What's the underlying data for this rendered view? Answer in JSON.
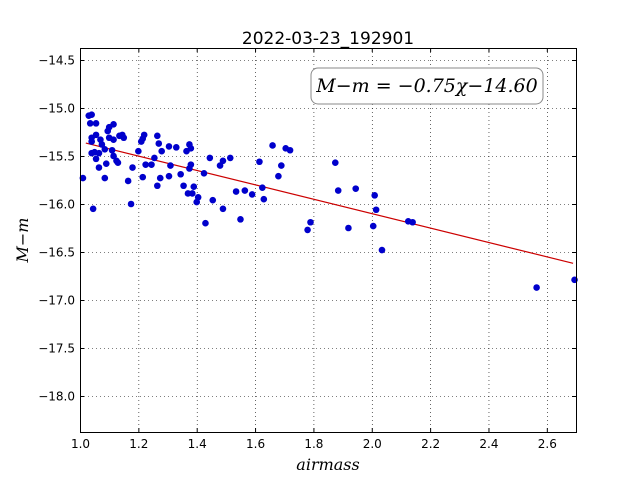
{
  "chart_data": {
    "type": "scatter",
    "title": "2022-03-23_192901",
    "xlabel": "airmass",
    "ylabel": "M−m",
    "xlim": [
      1.0,
      2.7
    ],
    "ylim": [
      -18.375,
      -14.375
    ],
    "y_inverted": true,
    "xticks": [
      1.0,
      1.2,
      1.4,
      1.6,
      1.8,
      2.0,
      2.2,
      2.4,
      2.6
    ],
    "xtick_labels": [
      "1.0",
      "1.2",
      "1.4",
      "1.6",
      "1.8",
      "2.0",
      "2.2",
      "2.4",
      "2.6"
    ],
    "yticks": [
      -14.5,
      -15.0,
      -15.5,
      -16.0,
      -16.5,
      -17.0,
      -17.5,
      -18.0
    ],
    "ytick_labels": [
      "−14.5",
      "−15.0",
      "−15.5",
      "−16.0",
      "−16.5",
      "−17.0",
      "−17.5",
      "−18.0"
    ],
    "grid": true,
    "annotation": "M−m = −0.75χ−14.60",
    "fit": {
      "slope": -0.75,
      "intercept": -14.6,
      "x_range": [
        1.02,
        2.69
      ],
      "color": "#cc0000"
    },
    "point_color": "#0000cc",
    "points": [
      [
        1.01,
        -15.73
      ],
      [
        1.03,
        -15.08
      ],
      [
        1.04,
        -15.07
      ],
      [
        1.035,
        -15.16
      ],
      [
        1.055,
        -15.16
      ],
      [
        1.04,
        -15.31
      ],
      [
        1.055,
        -15.28
      ],
      [
        1.04,
        -15.35
      ],
      [
        1.07,
        -15.33
      ],
      [
        1.075,
        -15.38
      ],
      [
        1.085,
        -15.43
      ],
      [
        1.04,
        -15.47
      ],
      [
        1.05,
        -15.46
      ],
      [
        1.065,
        -15.47
      ],
      [
        1.055,
        -15.53
      ],
      [
        1.065,
        -15.62
      ],
      [
        1.085,
        -15.73
      ],
      [
        1.09,
        -15.58
      ],
      [
        1.045,
        -16.05
      ],
      [
        1.095,
        -15.24
      ],
      [
        1.1,
        -15.2
      ],
      [
        1.1,
        -15.31
      ],
      [
        1.115,
        -15.17
      ],
      [
        1.115,
        -15.33
      ],
      [
        1.135,
        -15.29
      ],
      [
        1.145,
        -15.28
      ],
      [
        1.15,
        -15.31
      ],
      [
        1.11,
        -15.44
      ],
      [
        1.115,
        -15.5
      ],
      [
        1.125,
        -15.55
      ],
      [
        1.13,
        -15.57
      ],
      [
        1.165,
        -15.76
      ],
      [
        1.175,
        -16.0
      ],
      [
        1.18,
        -15.62
      ],
      [
        1.2,
        -15.45
      ],
      [
        1.21,
        -15.35
      ],
      [
        1.215,
        -15.32
      ],
      [
        1.22,
        -15.28
      ],
      [
        1.215,
        -15.72
      ],
      [
        1.225,
        -15.59
      ],
      [
        1.245,
        -15.59
      ],
      [
        1.265,
        -15.29
      ],
      [
        1.27,
        -15.37
      ],
      [
        1.28,
        -15.45
      ],
      [
        1.255,
        -15.52
      ],
      [
        1.265,
        -15.81
      ],
      [
        1.275,
        -15.73
      ],
      [
        1.305,
        -15.4
      ],
      [
        1.305,
        -15.71
      ],
      [
        1.31,
        -15.6
      ],
      [
        1.33,
        -15.41
      ],
      [
        1.345,
        -15.69
      ],
      [
        1.355,
        -15.81
      ],
      [
        1.365,
        -15.45
      ],
      [
        1.375,
        -15.38
      ],
      [
        1.38,
        -15.42
      ],
      [
        1.375,
        -15.63
      ],
      [
        1.38,
        -15.59
      ],
      [
        1.37,
        -15.89
      ],
      [
        1.385,
        -15.89
      ],
      [
        1.39,
        -15.82
      ],
      [
        1.4,
        -15.98
      ],
      [
        1.405,
        -15.93
      ],
      [
        1.425,
        -15.68
      ],
      [
        1.43,
        -16.2
      ],
      [
        1.445,
        -15.52
      ],
      [
        1.455,
        -15.96
      ],
      [
        1.48,
        -15.6
      ],
      [
        1.49,
        -15.55
      ],
      [
        1.49,
        -16.05
      ],
      [
        1.515,
        -15.52
      ],
      [
        1.535,
        -15.87
      ],
      [
        1.55,
        -16.16
      ],
      [
        1.565,
        -15.86
      ],
      [
        1.59,
        -15.9
      ],
      [
        1.615,
        -15.56
      ],
      [
        1.625,
        -15.83
      ],
      [
        1.63,
        -15.95
      ],
      [
        1.66,
        -15.39
      ],
      [
        1.68,
        -15.71
      ],
      [
        1.69,
        -15.6
      ],
      [
        1.705,
        -15.42
      ],
      [
        1.72,
        -15.44
      ],
      [
        1.78,
        -16.27
      ],
      [
        1.79,
        -16.19
      ],
      [
        1.875,
        -15.57
      ],
      [
        1.885,
        -15.86
      ],
      [
        1.92,
        -16.25
      ],
      [
        1.945,
        -15.84
      ],
      [
        2.005,
        -16.23
      ],
      [
        2.01,
        -15.91
      ],
      [
        2.015,
        -16.06
      ],
      [
        2.035,
        -16.48
      ],
      [
        2.125,
        -16.18
      ],
      [
        2.14,
        -16.19
      ],
      [
        2.565,
        -16.87
      ],
      [
        2.695,
        -16.79
      ]
    ]
  }
}
